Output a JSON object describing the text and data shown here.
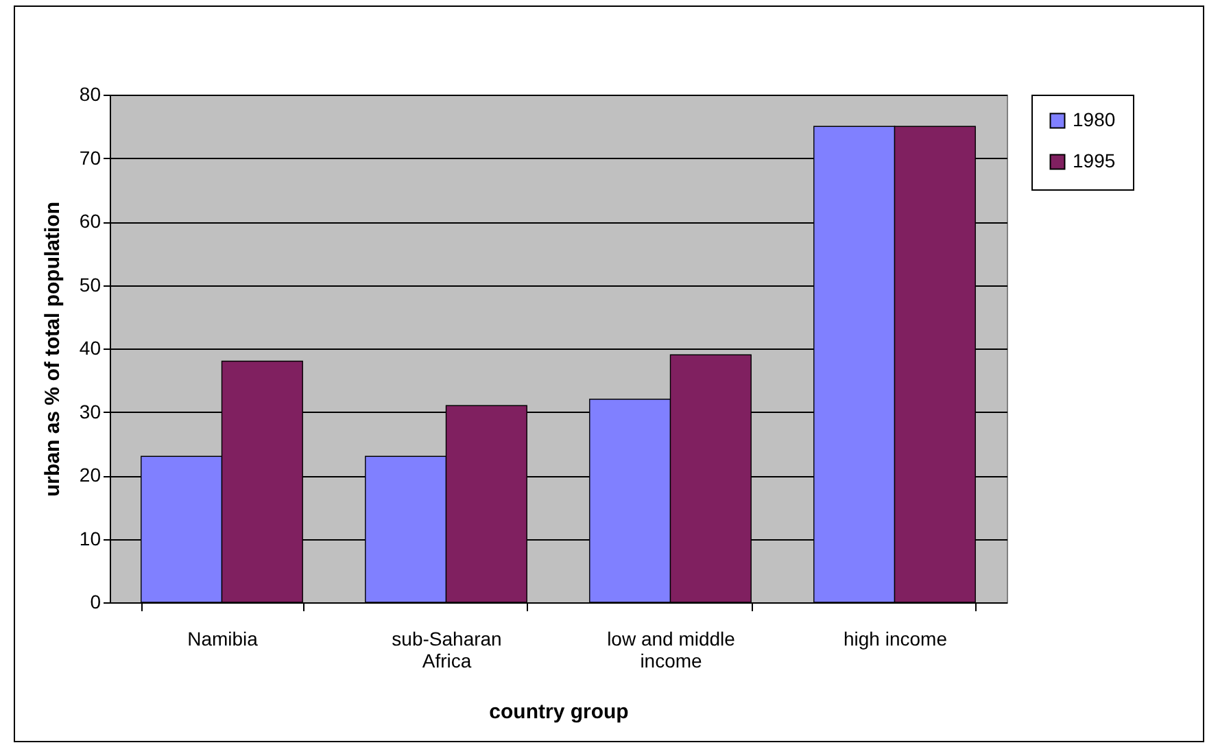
{
  "chart_data": {
    "type": "bar",
    "xlabel": "country group",
    "ylabel": "urban as % of total population",
    "categories": [
      "Namibia",
      "sub-Saharan Africa",
      "low and middle income",
      "high income"
    ],
    "series": [
      {
        "name": "1980",
        "color": "#8080ff",
        "values": [
          23,
          23,
          32,
          75
        ]
      },
      {
        "name": "1995",
        "color": "#802060",
        "values": [
          38,
          31,
          39,
          75
        ]
      }
    ],
    "ylim": [
      0,
      80
    ],
    "yticks": [
      0,
      10,
      20,
      30,
      40,
      50,
      60,
      70,
      80
    ],
    "grid": "y",
    "legend": "right"
  }
}
